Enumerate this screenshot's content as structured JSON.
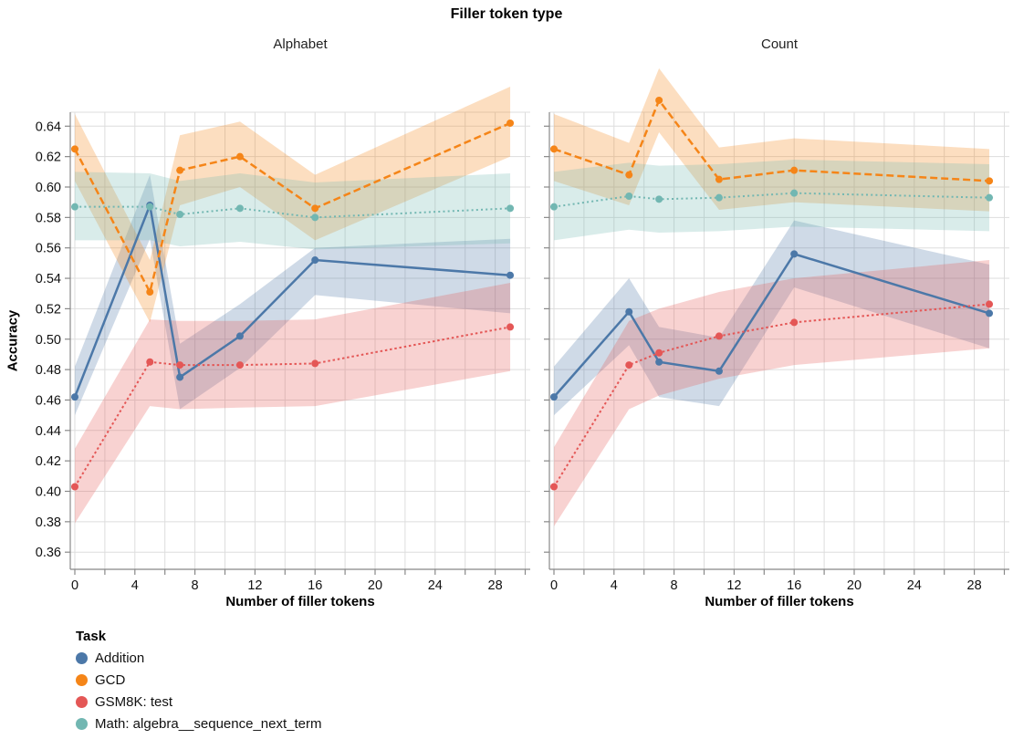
{
  "figure": {
    "title": "Filler token type",
    "x_axis_title": "Number of filler tokens",
    "y_axis_title": "Accuracy",
    "legend": {
      "title": "Task",
      "items": [
        {
          "label": "Addition",
          "color": "#4c78a8"
        },
        {
          "label": "GCD",
          "color": "#f58518"
        },
        {
          "label": "GSM8K: test",
          "color": "#e45756"
        },
        {
          "label": "Math: algebra__sequence_next_term",
          "color": "#72b7b2"
        }
      ]
    },
    "colors": {
      "grid": "#dddddd",
      "axis": "#888888",
      "tick_label": "#111111"
    }
  },
  "chart_data": {
    "type": "line",
    "title": "Filler token type",
    "subtitle_facets": "columns faceted by filler token type",
    "xlabel": "Number of filler tokens",
    "ylabel": "Accuracy",
    "x": [
      0,
      5,
      7,
      11,
      16,
      29
    ],
    "xlim": [
      -0.3,
      30.4
    ],
    "ylim": [
      0.349,
      0.649
    ],
    "grid": true,
    "band": "shaded confidence interval around each line",
    "legend_position": "bottom-left",
    "legend_title": "Task",
    "x_tick_values": [
      0,
      4,
      8,
      12,
      16,
      20,
      24,
      28
    ],
    "x_tick_labels": [
      "0",
      "4",
      "8",
      "12",
      "16",
      "20",
      "24",
      "28"
    ],
    "x_grid_step": 2,
    "y_tick_values": [
      0.36,
      0.38,
      0.4,
      0.42,
      0.44,
      0.46,
      0.48,
      0.5,
      0.52,
      0.54,
      0.56,
      0.58,
      0.6,
      0.62,
      0.64
    ],
    "y_tick_labels": [
      "0.36",
      "0.38",
      "0.40",
      "0.42",
      "0.44",
      "0.46",
      "0.48",
      "0.50",
      "0.52",
      "0.54",
      "0.56",
      "0.58",
      "0.60",
      "0.62",
      "0.64"
    ],
    "facets": [
      {
        "label": "Alphabet",
        "series": [
          {
            "name": "Addition",
            "color": "#4c78a8",
            "line": "solid",
            "values": [
              0.462,
              0.588,
              0.475,
              0.502,
              0.552,
              0.542
            ],
            "ci_lo": [
              0.45,
              0.566,
              0.454,
              0.481,
              0.529,
              0.517
            ],
            "ci_hi": [
              0.482,
              0.608,
              0.497,
              0.523,
              0.56,
              0.566
            ]
          },
          {
            "name": "GCD",
            "color": "#f58518",
            "line": "dashed",
            "values": [
              0.625,
              0.531,
              0.611,
              0.62,
              0.586,
              0.642
            ],
            "ci_lo": [
              0.604,
              0.511,
              0.588,
              0.6,
              0.565,
              0.62
            ],
            "ci_hi": [
              0.648,
              0.552,
              0.634,
              0.643,
              0.608,
              0.666
            ]
          },
          {
            "name": "GSM8K: test",
            "color": "#e45756",
            "line": "dotted",
            "values": [
              0.403,
              0.485,
              0.483,
              0.483,
              0.484,
              0.508
            ],
            "ci_lo": [
              0.379,
              0.456,
              0.454,
              0.455,
              0.456,
              0.479
            ],
            "ci_hi": [
              0.428,
              0.513,
              0.512,
              0.512,
              0.513,
              0.537
            ]
          },
          {
            "name": "Math: algebra__sequence_next_term",
            "color": "#72b7b2",
            "line": "dotted-fine",
            "values": [
              0.587,
              0.587,
              0.582,
              0.586,
              0.58,
              0.586
            ],
            "ci_lo": [
              0.565,
              0.565,
              0.561,
              0.564,
              0.559,
              0.563
            ],
            "ci_hi": [
              0.61,
              0.609,
              0.604,
              0.609,
              0.603,
              0.609
            ]
          }
        ]
      },
      {
        "label": "Count",
        "series": [
          {
            "name": "Addition",
            "color": "#4c78a8",
            "line": "solid",
            "values": [
              0.462,
              0.518,
              0.485,
              0.479,
              0.556,
              0.517
            ],
            "ci_lo": [
              0.45,
              0.496,
              0.462,
              0.456,
              0.534,
              0.494
            ],
            "ci_hi": [
              0.482,
              0.54,
              0.508,
              0.501,
              0.578,
              0.549
            ]
          },
          {
            "name": "GCD",
            "color": "#f58518",
            "line": "dashed",
            "values": [
              0.625,
              0.608,
              0.657,
              0.605,
              0.611,
              0.604
            ],
            "ci_lo": [
              0.604,
              0.588,
              0.636,
              0.585,
              0.59,
              0.584
            ],
            "ci_hi": [
              0.648,
              0.629,
              0.678,
              0.626,
              0.632,
              0.625
            ]
          },
          {
            "name": "GSM8K: test",
            "color": "#e45756",
            "line": "dotted",
            "values": [
              0.403,
              0.483,
              0.491,
              0.502,
              0.511,
              0.523
            ],
            "ci_lo": [
              0.377,
              0.454,
              0.463,
              0.474,
              0.483,
              0.494
            ],
            "ci_hi": [
              0.429,
              0.512,
              0.52,
              0.531,
              0.54,
              0.552
            ]
          },
          {
            "name": "Math: algebra__sequence_next_term",
            "color": "#72b7b2",
            "line": "dotted-fine",
            "values": [
              0.587,
              0.594,
              0.592,
              0.593,
              0.596,
              0.593
            ],
            "ci_lo": [
              0.565,
              0.572,
              0.57,
              0.571,
              0.574,
              0.571
            ],
            "ci_hi": [
              0.61,
              0.616,
              0.614,
              0.615,
              0.618,
              0.615
            ]
          }
        ]
      }
    ]
  }
}
